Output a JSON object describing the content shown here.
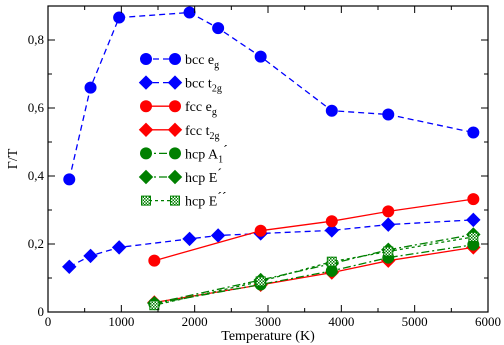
{
  "chart_data": {
    "type": "line",
    "title": "",
    "xlabel": "Temperature (K)",
    "ylabel": "Γ/T",
    "xlim": [
      0,
      6000
    ],
    "ylim": [
      0,
      0.9
    ],
    "xticks": [
      0,
      1000,
      2000,
      3000,
      4000,
      5000,
      6000
    ],
    "yticks": [
      0,
      0.2,
      0.4,
      0.6,
      0.8
    ],
    "xtick_labels": [
      "0",
      "1000",
      "2000",
      "3000",
      "4000",
      "5000",
      "6000"
    ],
    "ytick_labels": [
      "0",
      "0,2",
      "0,4",
      "0,6",
      "0,8"
    ],
    "grid": false,
    "legend_position": "center",
    "series": [
      {
        "name": "bcc e_g",
        "label_main": "bcc e",
        "label_sub": "g",
        "label_sup": "",
        "color": "#0000ff",
        "marker": "circle",
        "filled": true,
        "dash": "6,4",
        "x": [
          290,
          580,
          970,
          1930,
          2320,
          2900,
          3870,
          4640,
          5800
        ],
        "y": [
          0.39,
          0.66,
          0.866,
          0.881,
          0.835,
          0.751,
          0.592,
          0.581,
          0.528
        ]
      },
      {
        "name": "bcc t_2g",
        "label_main": "bcc t",
        "label_sub": "2g",
        "label_sup": "",
        "color": "#0000ff",
        "marker": "diamond",
        "filled": true,
        "dash": "6,4",
        "x": [
          290,
          580,
          970,
          1930,
          2320,
          2900,
          3870,
          4640,
          5800
        ],
        "y": [
          0.133,
          0.165,
          0.19,
          0.215,
          0.225,
          0.231,
          0.24,
          0.257,
          0.271
        ]
      },
      {
        "name": "fcc e_g",
        "label_main": "fcc e",
        "label_sub": "g",
        "label_sup": "",
        "color": "#ff0000",
        "marker": "circle",
        "filled": true,
        "dash": "",
        "x": [
          1450,
          2900,
          3870,
          4640,
          5800
        ],
        "y": [
          0.151,
          0.239,
          0.267,
          0.296,
          0.332
        ]
      },
      {
        "name": "fcc t_2g",
        "label_main": "fcc t",
        "label_sub": "2g",
        "label_sup": "",
        "color": "#ff0000",
        "marker": "diamond",
        "filled": true,
        "dash": "",
        "x": [
          1450,
          2900,
          3870,
          4640,
          5800
        ],
        "y": [
          0.028,
          0.08,
          0.116,
          0.151,
          0.19
        ]
      },
      {
        "name": "hcp A_1´",
        "label_main": "hcp A",
        "label_sub": "1",
        "label_sup": "´",
        "color": "#008000",
        "marker": "circle",
        "filled": true,
        "dash": "8,3,2,3",
        "x": [
          1450,
          2900,
          3870,
          4640,
          5800
        ],
        "y": [
          0.024,
          0.081,
          0.121,
          0.16,
          0.198
        ]
      },
      {
        "name": "hcp E´",
        "label_main": "hcp E",
        "label_sub": "",
        "label_sup": "´",
        "color": "#008000",
        "marker": "diamond",
        "filled": true,
        "dash": "8,3,2,3",
        "x": [
          1450,
          2900,
          3870,
          4640,
          5800
        ],
        "y": [
          0.026,
          0.094,
          0.142,
          0.183,
          0.228
        ]
      },
      {
        "name": "hcp E´´",
        "label_main": "hcp E",
        "label_sub": "",
        "label_sup": "´´",
        "color": "#008000",
        "marker": "square",
        "filled": false,
        "dash": "3,3",
        "x": [
          1450,
          2900,
          3870,
          4640,
          5800
        ],
        "y": [
          0.02,
          0.09,
          0.148,
          0.178,
          0.221
        ]
      }
    ]
  }
}
